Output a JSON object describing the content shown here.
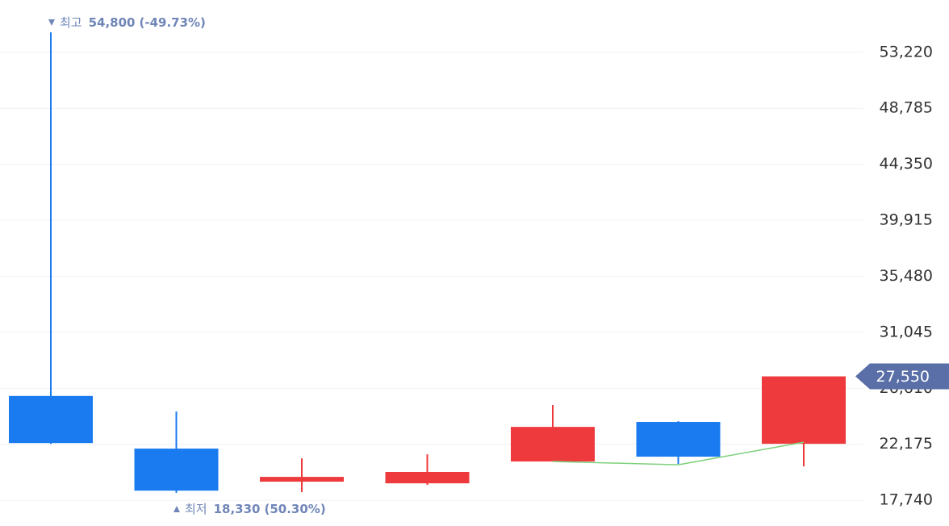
{
  "chart_data": {
    "type": "candlestick",
    "up_color": "#ee3a3d",
    "down_color": "#1a7bf0",
    "open": [
      26000,
      21830,
      19210,
      19080,
      20810,
      23940,
      22210
    ],
    "high": [
      54800,
      24770,
      21060,
      21380,
      25280,
      24000,
      27550
    ],
    "low": [
      22200,
      18330,
      18380,
      18950,
      20810,
      20620,
      20420
    ],
    "close": [
      22270,
      18500,
      19590,
      19980,
      23550,
      21190,
      27550
    ],
    "line_values": [
      null,
      null,
      null,
      null,
      20810,
      20550,
      22340
    ],
    "line_color": "#7ed07a",
    "ylim": [
      15700,
      57360
    ],
    "yticks": [
      {
        "value": 17740,
        "label": "17,740"
      },
      {
        "value": 22175,
        "label": "22,175"
      },
      {
        "value": 26610,
        "label": "26,610"
      },
      {
        "value": 31045,
        "label": "31,045"
      },
      {
        "value": 35480,
        "label": "35,480"
      },
      {
        "value": 39915,
        "label": "39,915"
      },
      {
        "value": 44350,
        "label": "44,350"
      },
      {
        "value": 48785,
        "label": "48,785"
      },
      {
        "value": 53220,
        "label": "53,220"
      }
    ],
    "grid": true,
    "high_annotation": {
      "label": "최고",
      "value": 54800,
      "value_label": "54,800",
      "change": "(-49.73%)"
    },
    "low_annotation": {
      "label": "최저",
      "value": 18330,
      "value_label": "18,330",
      "change": "(50.30%)"
    },
    "current_price": {
      "value": 27550,
      "label": "27,550"
    }
  }
}
